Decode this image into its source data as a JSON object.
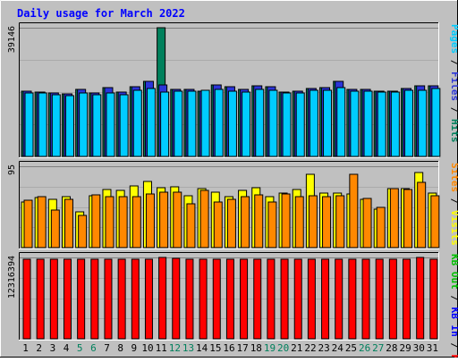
{
  "chart_data": {
    "type": "bar",
    "title": "Daily usage for March 2022",
    "categories": [
      "1",
      "2",
      "3",
      "4",
      "5",
      "6",
      "7",
      "8",
      "9",
      "10",
      "11",
      "12",
      "13",
      "14",
      "15",
      "16",
      "17",
      "18",
      "19",
      "20",
      "21",
      "22",
      "23",
      "24",
      "25",
      "26",
      "27",
      "28",
      "29",
      "30",
      "31"
    ],
    "weekend_categories": [
      "5",
      "6",
      "12",
      "13",
      "19",
      "20",
      "26",
      "27"
    ],
    "grid": true,
    "panels": [
      {
        "name": "hits",
        "axis_max_label": "39146",
        "ylim": [
          0,
          39146
        ],
        "right_labels": [
          "Hits",
          "Files",
          "Pages"
        ],
        "right_separator": " / ",
        "series": [
          {
            "key": "hits",
            "color": "#00805c",
            "values": [
              19800,
              19600,
              19200,
              19100,
              20500,
              19300,
              20800,
              19500,
              21300,
              22700,
              39146,
              20500,
              20500,
              19800,
              21800,
              21300,
              20300,
              21600,
              21300,
              19700,
              19800,
              20700,
              21000,
              22900,
              20300,
              20300,
              19800,
              19800,
              20600,
              21400,
              21500
            ]
          },
          {
            "key": "files",
            "color": "#2b35d9",
            "values": [
              19800,
              19600,
              19200,
              19100,
              20500,
              19300,
              20800,
              19500,
              21300,
              22700,
              21800,
              20500,
              20500,
              19800,
              21800,
              21300,
              20300,
              21600,
              21300,
              19700,
              19800,
              20700,
              21000,
              22900,
              20300,
              20300,
              19800,
              19800,
              20600,
              21400,
              21500
            ]
          },
          {
            "key": "pages",
            "color": "#00ccff",
            "values": [
              19300,
              19200,
              18800,
              18600,
              19400,
              18800,
              19400,
              18800,
              20100,
              20700,
              19500,
              19900,
              19900,
              20000,
              20400,
              19800,
              19600,
              20400,
              20200,
              19300,
              19300,
              20100,
              20000,
              20800,
              19900,
              19900,
              19500,
              19500,
              20000,
              20000,
              20600
            ]
          }
        ]
      },
      {
        "name": "visits",
        "axis_max_label": "95",
        "ylim": [
          0,
          95
        ],
        "right_labels": [
          "Visits",
          "Sites"
        ],
        "right_separator": " / ",
        "series": [
          {
            "key": "visits",
            "color": "#ffff00",
            "values": [
              53,
              58,
              56,
              59,
              42,
              61,
              68,
              67,
              72,
              77,
              70,
              71,
              61,
              69,
              65,
              60,
              67,
              70,
              59,
              64,
              68,
              86,
              64,
              64,
              63,
              56,
              45,
              69,
              69,
              88,
              64
            ]
          },
          {
            "key": "sites",
            "color": "#ff8800",
            "values": [
              55,
              60,
              44,
              56,
              38,
              62,
              59,
              60,
              60,
              63,
              65,
              65,
              51,
              67,
              53,
              56,
              59,
              62,
              53,
              63,
              60,
              61,
              59,
              61,
              86,
              57,
              47,
              69,
              68,
              76,
              61
            ]
          }
        ]
      },
      {
        "name": "kbytes",
        "axis_max_label": "12316394",
        "ylim": [
          0,
          12316394
        ],
        "right_labels": [
          "KB F",
          "KB In",
          "KB Out"
        ],
        "right_separator": " / ",
        "series": [
          {
            "key": "kbin",
            "color": "#0000ff",
            "values": [
              0,
              0,
              0,
              0,
              0,
              0,
              0,
              0,
              0,
              0,
              0,
              0,
              0,
              0,
              0,
              0,
              0,
              0,
              0,
              0,
              0,
              0,
              0,
              0,
              0,
              0,
              0,
              0,
              0,
              0,
              0
            ]
          },
          {
            "key": "kbout",
            "color": "#00c000",
            "values": [
              0,
              0,
              0,
              0,
              0,
              0,
              0,
              0,
              0,
              0,
              0,
              0,
              0,
              0,
              0,
              0,
              0,
              0,
              0,
              0,
              0,
              0,
              0,
              0,
              0,
              0,
              0,
              0,
              0,
              0,
              0
            ]
          },
          {
            "key": "kbf",
            "color": "#ff0000",
            "values": [
              12100000,
              12100000,
              12100000,
              12100000,
              12100000,
              12100000,
              12100000,
              12100000,
              12100000,
              12100000,
              12316394,
              12150000,
              12100000,
              12100000,
              12100000,
              12100000,
              12100000,
              12100000,
              12100000,
              12100000,
              12100000,
              12100000,
              12100000,
              12100000,
              12100000,
              12100000,
              12100000,
              12100000,
              12100000,
              12250000,
              12100000
            ]
          }
        ]
      }
    ]
  },
  "colors": {
    "background": "#c0c0c0",
    "plot_background": "#c0c0c0",
    "frame_dark": "#000000",
    "frame_light": "#ffffff",
    "title_text": "#0000ff",
    "axis_text": "#000000",
    "weekday_label": "#000000",
    "weekend_label": "#00805c",
    "grid": "#808080",
    "right_label_sep": "#000000"
  }
}
